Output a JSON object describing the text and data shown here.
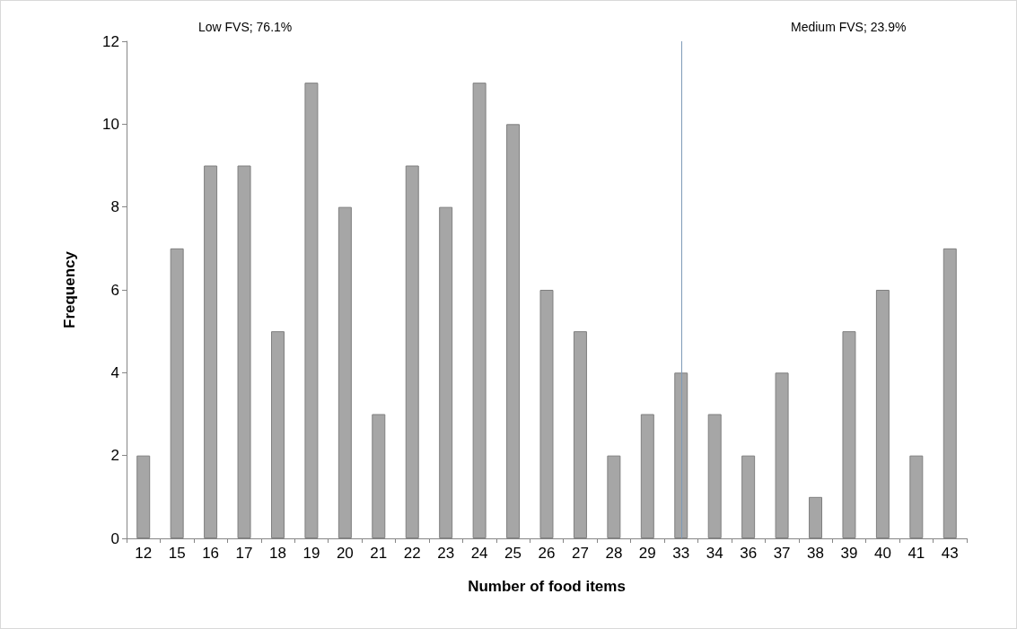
{
  "chart_data": {
    "type": "bar",
    "categories": [
      "12",
      "15",
      "16",
      "17",
      "18",
      "19",
      "20",
      "21",
      "22",
      "23",
      "24",
      "25",
      "26",
      "27",
      "28",
      "29",
      "33",
      "34",
      "36",
      "37",
      "38",
      "39",
      "40",
      "41",
      "43"
    ],
    "values": [
      2,
      7,
      9,
      9,
      5,
      11,
      8,
      3,
      9,
      8,
      11,
      10,
      6,
      5,
      2,
      3,
      4,
      3,
      2,
      4,
      1,
      5,
      6,
      2,
      7
    ],
    "color": "#a6a6a6",
    "xlabel": "Number of food items",
    "ylabel": "Frequency",
    "ylim": [
      0,
      12
    ],
    "yticks": [
      0,
      2,
      4,
      6,
      8,
      10,
      12
    ],
    "grid": false,
    "annotations": [
      "Low FVS; 76.1%",
      "Medium FVS; 23.9%"
    ],
    "ref_lines": [
      {
        "axis": "x",
        "value": "33",
        "color": "#7f9bb8"
      }
    ]
  }
}
